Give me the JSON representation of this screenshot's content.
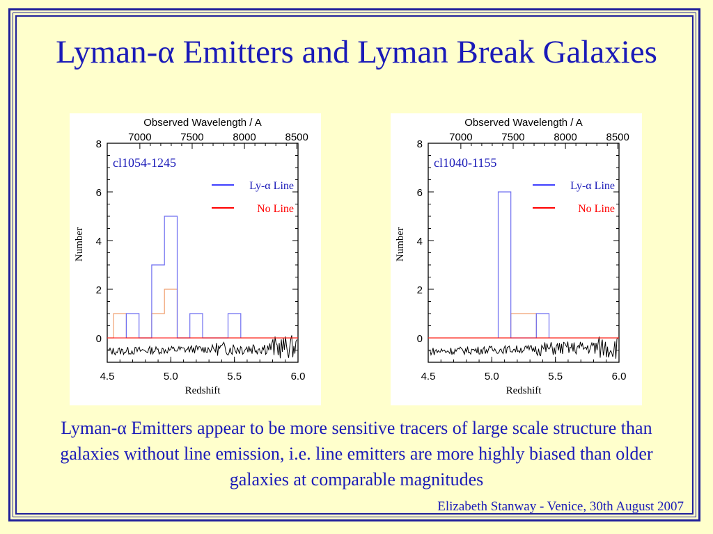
{
  "slide": {
    "title": "Lyman-α Emitters and Lyman Break Galaxies",
    "caption": "Lyman-α Emitters appear to be more sensitive tracers of large scale structure than galaxies without line emission, i.e. line emitters are more highly biased than older galaxies at comparable magnitudes",
    "footer": "Elizabeth Stanway - Venice, 30th August 2007",
    "colors": {
      "text": "#1a1ab8",
      "frame": "#1f1f9a",
      "background": "#ffffcc"
    }
  },
  "chart_data": [
    {
      "type": "histogram",
      "label": "cl1054-1245",
      "title": "Observed Wavelength / A",
      "xlabel": "Redshift",
      "ylabel": "Number",
      "xlim": [
        4.5,
        6.0
      ],
      "ylim": [
        -1,
        8
      ],
      "xticks": [
        "4.5",
        "5.0",
        "5.5",
        "6.0"
      ],
      "yticks": [
        "0",
        "2",
        "4",
        "6",
        "8"
      ],
      "top_axis_ticks": [
        "7000",
        "7500",
        "8000",
        "8500"
      ],
      "top_axis_values": [
        7000,
        7500,
        8000,
        8500
      ],
      "legend_position": "top-right",
      "series": [
        {
          "name": "Ly-α Line",
          "color": "#4040ff",
          "bin_edges": [
            4.65,
            4.75,
            4.85,
            4.95,
            5.05,
            5.15,
            5.25,
            5.45,
            5.55
          ],
          "counts": [
            1,
            0,
            3,
            5,
            0,
            1,
            0,
            1
          ]
        },
        {
          "name": "No Line",
          "color": "#ff0000",
          "bin_edges": [
            4.5,
            4.55,
            4.65,
            4.75,
            4.85,
            4.95,
            5.05,
            6.0
          ],
          "counts": [
            0,
            1,
            0,
            0,
            1,
            2,
            0
          ]
        }
      ]
    },
    {
      "type": "histogram",
      "label": "cl1040-1155",
      "title": "Observed Wavelength / A",
      "xlabel": "Redshift",
      "ylabel": "Number",
      "xlim": [
        4.5,
        6.0
      ],
      "ylim": [
        -1,
        8
      ],
      "xticks": [
        "4.5",
        "5.0",
        "5.5",
        "6.0"
      ],
      "yticks": [
        "0",
        "2",
        "4",
        "6",
        "8"
      ],
      "top_axis_ticks": [
        "7000",
        "7500",
        "8000",
        "8500"
      ],
      "top_axis_values": [
        7000,
        7500,
        8000,
        8500
      ],
      "legend_position": "top-right",
      "series": [
        {
          "name": "Ly-α Line",
          "color": "#4040ff",
          "bin_edges": [
            5.05,
            5.15,
            5.35,
            5.45
          ],
          "counts": [
            6,
            0,
            1
          ]
        },
        {
          "name": "No Line",
          "color": "#ff0000",
          "bin_edges": [
            4.5,
            5.15,
            5.35,
            6.0
          ],
          "counts": [
            0,
            1,
            0
          ]
        }
      ]
    }
  ]
}
